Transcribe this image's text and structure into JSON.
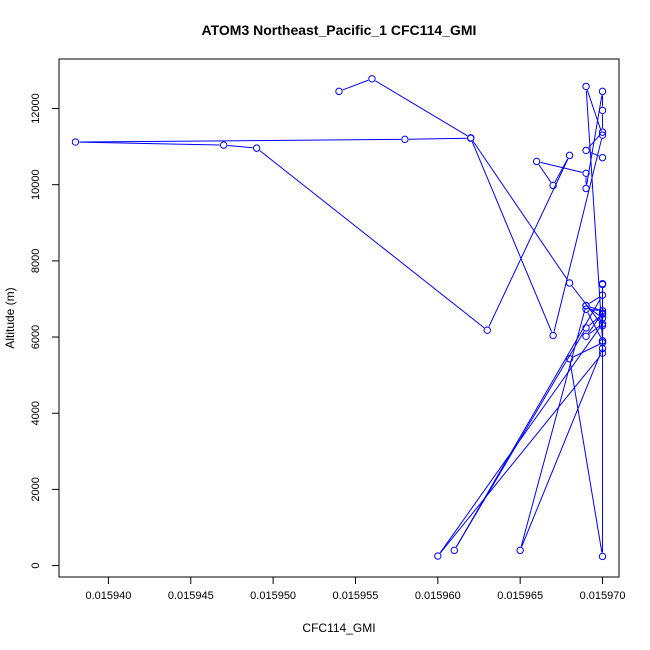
{
  "chart_data": {
    "type": "line",
    "title": "ATOM3 Northeast_Pacific_1 CFC114_GMI",
    "xlabel": "CFC114_GMI",
    "ylabel": "Altitude (m)",
    "xlim": [
      0.015937,
      0.015971
    ],
    "ylim": [
      -300,
      13300
    ],
    "xticks": [
      0.01594,
      0.015945,
      0.01595,
      0.015955,
      0.01596,
      0.015965,
      0.01597
    ],
    "xtick_labels": [
      "0.015940",
      "0.015945",
      "0.015950",
      "0.015955",
      "0.015960",
      "0.015965",
      "0.015970"
    ],
    "yticks": [
      0,
      2000,
      4000,
      6000,
      8000,
      10000,
      12000
    ],
    "ytick_labels": [
      "0",
      "2000",
      "4000",
      "6000",
      "8000",
      "10000",
      "12000"
    ],
    "series_color": "#0000ff",
    "marker": "open-circle",
    "grid": false,
    "series": [
      {
        "x": [
          0.015954,
          0.015956,
          0.015962,
          0.015968,
          0.01597,
          0.01597,
          0.015969,
          0.01597,
          0.01596,
          0.01597,
          0.01597,
          0.015969,
          0.01597,
          0.015969,
          0.01597,
          0.01597,
          0.015968,
          0.01597,
          0.01597,
          0.015969,
          0.015961,
          0.01597,
          0.015969,
          0.015965,
          0.01597,
          0.01597,
          0.01597,
          0.01597,
          0.015969,
          0.01597,
          0.015967,
          0.015962,
          0.015958,
          0.015938,
          0.015947,
          0.015949,
          0.015963,
          0.015968,
          0.015967,
          0.015966,
          0.015969,
          0.015969,
          0.01597,
          0.01597,
          0.01597,
          0.015969,
          0.01597
        ],
        "y": [
          12450,
          12780,
          11230,
          7420,
          6300,
          6630,
          6020,
          6350,
          250,
          5580,
          6500,
          6820,
          6690,
          6730,
          5900,
          240,
          5430,
          5850,
          6600,
          6240,
          400,
          7100,
          6830,
          400,
          5700,
          7400,
          7380,
          5900,
          12580,
          11300,
          6040,
          11220,
          11190,
          11120,
          11040,
          10960,
          6180,
          10770,
          9980,
          10610,
          10300,
          9900,
          12450,
          11950,
          11380,
          10900,
          10710
        ]
      }
    ]
  }
}
